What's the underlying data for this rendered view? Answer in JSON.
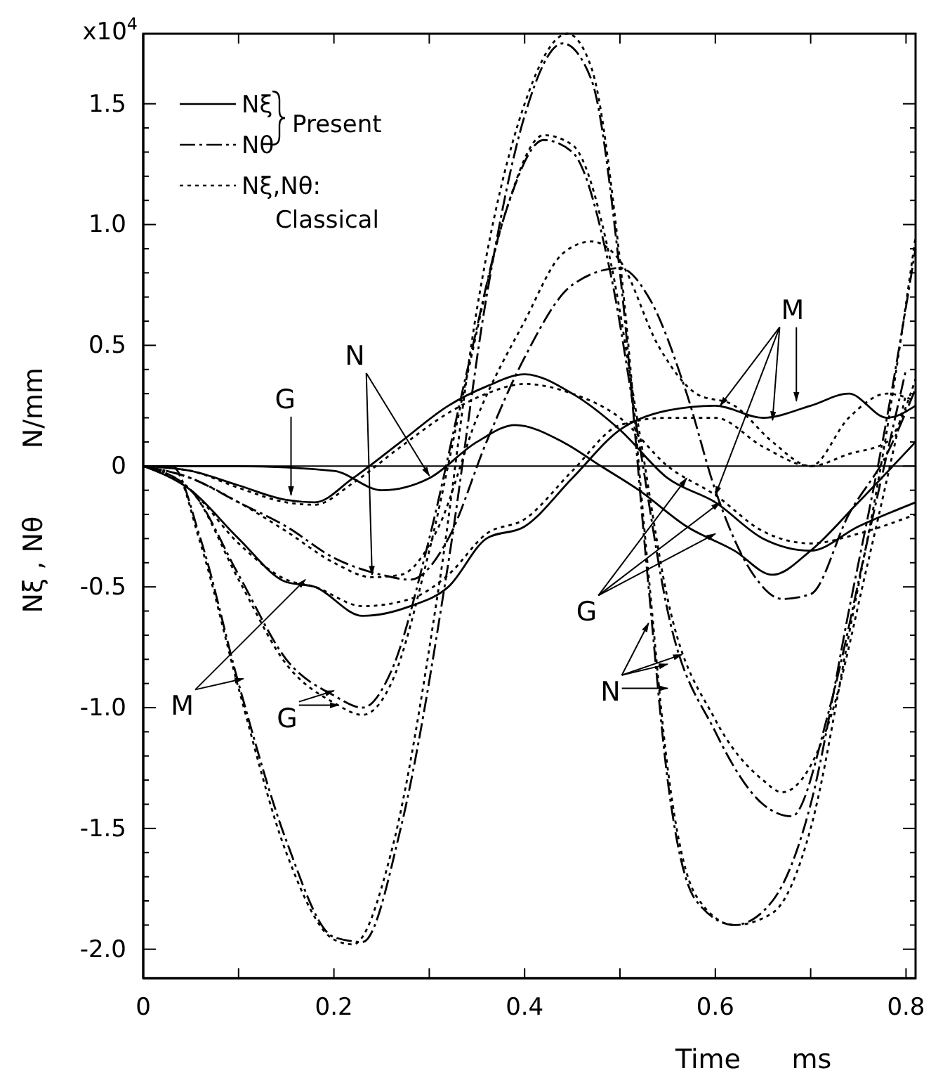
{
  "chart_data": {
    "type": "line",
    "xlabel": "Time      ms",
    "ylabel": "Nξ , Nθ        N/mm",
    "xlim": [
      0,
      0.81
    ],
    "ylim": [
      -2.12,
      1.79
    ],
    "xticks": [
      0,
      {
        "value": 0.1,
        "label": null
      },
      0.2,
      {
        "value": 0.3,
        "label": null
      },
      0.4,
      {
        "value": 0.5,
        "label": null
      },
      0.6,
      {
        "value": 0.7,
        "label": null
      },
      0.8
    ],
    "yticks": [
      {
        "value": -2,
        "label": "-2.0"
      },
      {
        "value": -1.9,
        "label": null
      },
      {
        "value": -1.8,
        "label": null
      },
      {
        "value": -1.7,
        "label": null
      },
      {
        "value": -1.6,
        "label": null
      },
      -1.5,
      {
        "value": -1.4,
        "label": null
      },
      {
        "value": -1.3,
        "label": null
      },
      {
        "value": -1.2,
        "label": null
      },
      {
        "value": -1.1,
        "label": null
      },
      {
        "value": -1,
        "label": "-1.0"
      },
      {
        "value": -0.9,
        "label": null
      },
      {
        "value": -0.8,
        "label": null
      },
      {
        "value": -0.7,
        "label": null
      },
      {
        "value": -0.6,
        "label": null
      },
      -0.5,
      {
        "value": -0.4,
        "label": null
      },
      {
        "value": -0.3,
        "label": null
      },
      {
        "value": -0.2,
        "label": null
      },
      {
        "value": -0.1,
        "label": null
      },
      0,
      {
        "value": 0.1,
        "label": null
      },
      {
        "value": 0.2,
        "label": null
      },
      {
        "value": 0.3,
        "label": null
      },
      {
        "value": 0.4,
        "label": null
      },
      0.5,
      {
        "value": 0.6,
        "label": null
      },
      {
        "value": 0.7,
        "label": null
      },
      {
        "value": 0.8,
        "label": null
      },
      {
        "value": 0.9,
        "label": null
      },
      {
        "value": 1,
        "label": "1.0"
      },
      {
        "value": 1.1,
        "label": null
      },
      {
        "value": 1.2,
        "label": null
      },
      {
        "value": 1.3,
        "label": null
      },
      {
        "value": 1.4,
        "label": null
      },
      1.5
    ],
    "ref_lines": [
      {
        "axis": "y",
        "value": 0,
        "label": null
      }
    ],
    "legend": "top left",
    "grid": false,
    "annotations": [
      "x10$^{4}$",
      "Present",
      {
        "text": "G",
        "x": 0.155,
        "y": -0.12
      },
      {
        "text": "N",
        "x": 0.24,
        "y": -0.45
      },
      {
        "text": "M",
        "x": 0.17,
        "y": -0.47
      },
      {
        "text": "G",
        "x": 0.2,
        "y": -0.93
      },
      {
        "text": "M",
        "x": 0.605,
        "y": 0.25
      },
      {
        "text": "G",
        "x": 0.57,
        "y": -0.05
      },
      {
        "text": "N",
        "x": 0.53,
        "y": -0.65
      }
    ],
    "series": [
      {
        "name": "Nξ",
        "color": "#000000",
        "line_style": "solid",
        "x": [
          0,
          0.05,
          0.1,
          0.15,
          0.18,
          0.23,
          0.28,
          0.32,
          0.36,
          0.4,
          0.45,
          0.5,
          0.55,
          0.6,
          0.65,
          0.7,
          0.74,
          0.78,
          0.81
        ],
        "values": [
          0,
          -0.1,
          -0.3,
          -0.48,
          -0.5,
          -0.62,
          -0.58,
          -0.5,
          -0.3,
          -0.25,
          -0.05,
          0.15,
          0.23,
          0.25,
          0.2,
          0.25,
          0.3,
          0.2,
          0.25
        ]
      },
      {
        "name": "Nθ",
        "color": "#000000",
        "line_style": "dashed",
        "x": [
          0,
          0.03,
          0.06,
          0.1,
          0.15,
          0.2,
          0.23,
          0.27,
          0.32,
          0.36,
          0.4,
          0.44,
          0.47,
          0.5,
          0.53,
          0.55,
          0.58,
          0.62,
          0.66,
          0.7,
          0.74,
          0.78,
          0.81
        ],
        "values": [
          0,
          0,
          -0.3,
          -0.9,
          -1.55,
          -1.95,
          -1.97,
          -1.5,
          -0.4,
          0.7,
          1.45,
          1.75,
          1.6,
          0.8,
          -0.5,
          -1.3,
          -1.8,
          -1.9,
          -1.8,
          -1.4,
          -0.6,
          0.2,
          0.9
        ]
      },
      {
        "name": "Nξ,Nθ: Classical",
        "color": "#000000",
        "line_style": "dotted",
        "x": [
          0,
          0.03,
          0.06,
          0.1,
          0.15,
          0.2,
          0.22,
          0.26,
          0.31,
          0.35,
          0.4,
          0.445,
          0.47,
          0.5,
          0.53,
          0.55,
          0.58,
          0.62,
          0.66,
          0.7,
          0.74,
          0.78,
          0.81
        ],
        "values": [
          0,
          0,
          -0.32,
          -0.92,
          -1.6,
          -1.96,
          -1.98,
          -1.6,
          -0.5,
          0.65,
          1.5,
          1.79,
          1.65,
          0.85,
          -0.45,
          -1.25,
          -1.78,
          -1.9,
          -1.85,
          -1.5,
          -0.7,
          0.15,
          0.95
        ]
      },
      {
        "color": "#000000",
        "line_style": "dashed",
        "x": [
          0,
          0.05,
          0.1,
          0.15,
          0.2,
          0.23,
          0.26,
          0.3,
          0.34,
          0.38,
          0.42,
          0.45,
          0.49,
          0.52,
          0.55,
          0.6,
          0.65,
          0.68,
          0.72,
          0.76,
          0.8
        ],
        "values": [
          0,
          -0.1,
          -0.45,
          -0.8,
          -0.95,
          -1.0,
          -0.85,
          -0.3,
          0.4,
          1.05,
          1.35,
          1.3,
          0.8,
          0.1,
          -0.6,
          -1.1,
          -1.4,
          -1.45,
          -1.0,
          -0.3,
          0.4
        ]
      },
      {
        "color": "#000000",
        "line_style": "dotted",
        "x": [
          0,
          0.05,
          0.1,
          0.15,
          0.2,
          0.23,
          0.26,
          0.3,
          0.34,
          0.38,
          0.42,
          0.45,
          0.49,
          0.52,
          0.55,
          0.6,
          0.65,
          0.67,
          0.72,
          0.76,
          0.8
        ],
        "values": [
          0,
          -0.1,
          -0.47,
          -0.82,
          -0.98,
          -1.03,
          -0.9,
          -0.35,
          0.38,
          1.05,
          1.37,
          1.33,
          0.85,
          0.15,
          -0.55,
          -1.05,
          -1.3,
          -1.35,
          -1.05,
          -0.4,
          0.3
        ]
      },
      {
        "color": "#000000",
        "line_style": "dashed",
        "x": [
          0,
          0.05,
          0.1,
          0.15,
          0.2,
          0.25,
          0.28,
          0.32,
          0.36,
          0.4,
          0.45,
          0.5,
          0.53,
          0.57,
          0.6,
          0.64,
          0.67,
          0.7,
          0.74,
          0.78,
          0.81
        ],
        "values": [
          0,
          -0.05,
          -0.15,
          -0.25,
          -0.38,
          -0.45,
          -0.47,
          -0.3,
          0.1,
          0.45,
          0.75,
          0.82,
          0.7,
          0.3,
          -0.1,
          -0.45,
          -0.55,
          -0.53,
          -0.2,
          0.05,
          0.32
        ]
      },
      {
        "color": "#000000",
        "line_style": "dotted",
        "x": [
          0,
          0.05,
          0.1,
          0.15,
          0.2,
          0.24,
          0.27,
          0.31,
          0.35,
          0.4,
          0.44,
          0.47,
          0.5,
          0.54,
          0.58,
          0.62,
          0.66,
          0.7,
          0.74,
          0.78,
          0.81
        ],
        "values": [
          0,
          -0.05,
          -0.15,
          -0.27,
          -0.4,
          -0.46,
          -0.45,
          -0.25,
          0.2,
          0.6,
          0.88,
          0.93,
          0.85,
          0.5,
          0.3,
          0.25,
          0.1,
          0.0,
          0.05,
          0.1,
          0.36
        ]
      },
      {
        "color": "#000000",
        "line_style": "solid",
        "x": [
          0,
          0.05,
          0.1,
          0.15,
          0.18,
          0.22,
          0.27,
          0.32,
          0.36,
          0.4,
          0.45,
          0.5,
          0.55,
          0.6,
          0.65,
          0.7,
          0.75,
          0.81
        ],
        "values": [
          0,
          -0.02,
          -0.08,
          -0.14,
          -0.15,
          -0.05,
          0.1,
          0.25,
          0.33,
          0.38,
          0.3,
          0.15,
          -0.05,
          -0.15,
          -0.3,
          -0.35,
          -0.25,
          -0.15
        ]
      },
      {
        "color": "#000000",
        "line_style": "dotted",
        "x": [
          0,
          0.05,
          0.1,
          0.15,
          0.18,
          0.22,
          0.27,
          0.32,
          0.36,
          0.4,
          0.45,
          0.5,
          0.55,
          0.6,
          0.65,
          0.7,
          0.75,
          0.81
        ],
        "values": [
          0,
          -0.02,
          -0.09,
          -0.15,
          -0.16,
          -0.07,
          0.08,
          0.22,
          0.3,
          0.34,
          0.3,
          0.2,
          0.0,
          -0.12,
          -0.27,
          -0.32,
          -0.28,
          -0.2
        ]
      },
      {
        "color": "#000000",
        "line_style": "solid",
        "x": [
          0,
          0.1,
          0.2,
          0.25,
          0.3,
          0.35,
          0.39,
          0.44,
          0.48,
          0.52,
          0.57,
          0.62,
          0.66,
          0.7,
          0.75,
          0.81
        ],
        "values": [
          0,
          0,
          -0.02,
          -0.1,
          -0.05,
          0.1,
          0.17,
          0.1,
          0.0,
          -0.1,
          -0.25,
          -0.35,
          -0.45,
          -0.35,
          -0.15,
          0.1
        ]
      },
      {
        "color": "#000000",
        "line_style": "dotted",
        "x": [
          0,
          0.05,
          0.1,
          0.15,
          0.18,
          0.23,
          0.28,
          0.32,
          0.36,
          0.4,
          0.45,
          0.5,
          0.55,
          0.6,
          0.65,
          0.7,
          0.74,
          0.78,
          0.81
        ],
        "values": [
          0,
          -0.1,
          -0.32,
          -0.47,
          -0.5,
          -0.58,
          -0.55,
          -0.45,
          -0.28,
          -0.22,
          -0.02,
          0.17,
          0.2,
          0.2,
          0.08,
          0.0,
          0.2,
          0.3,
          0.27
        ]
      }
    ]
  }
}
